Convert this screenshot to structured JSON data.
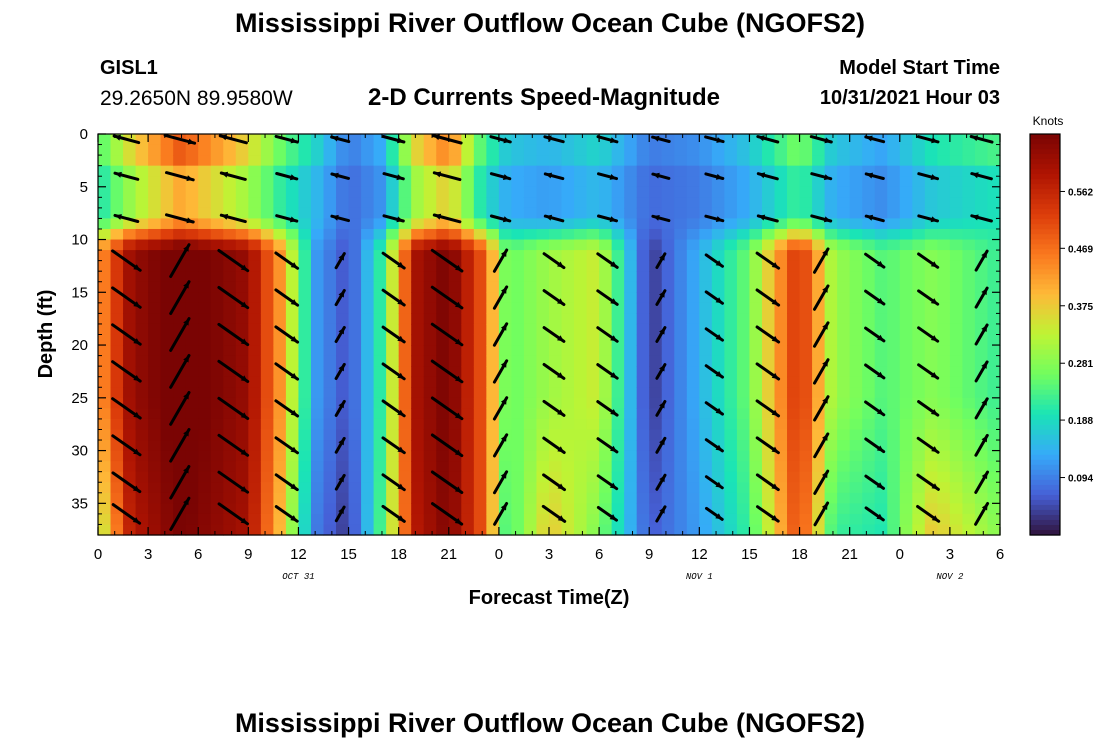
{
  "header": {
    "title": "Mississippi River Outflow Ocean Cube (NGOFS2)",
    "station_id": "GISL1",
    "coords": "29.2650N  89.9580W",
    "subtitle": "2-D Currents Speed-Magnitude",
    "model_start_label": "Model Start Time",
    "model_start_value": "10/31/2021 Hour 03"
  },
  "footer": {
    "title": "Mississippi River Outflow Ocean Cube (NGOFS2)"
  },
  "chart_data": {
    "type": "heatmap",
    "title": "2-D Currents Speed-Magnitude",
    "xlabel": "Forecast Time(Z)",
    "ylabel": "Depth (ft)",
    "x_ticks": [
      "0",
      "3",
      "6",
      "9",
      "12",
      "15",
      "18",
      "21",
      "0",
      "3",
      "6",
      "9",
      "12",
      "15",
      "18",
      "21",
      "0",
      "3",
      "6"
    ],
    "date_labels": [
      {
        "text": "OCT 31",
        "at_tick": 4
      },
      {
        "text": "NOV 1",
        "at_tick": 12
      },
      {
        "text": "NOV 2",
        "at_tick": 17
      }
    ],
    "y_ticks": [
      0,
      5,
      10,
      15,
      20,
      25,
      30,
      35
    ],
    "ylim": [
      0,
      38
    ],
    "colorbar": {
      "unit": "Knots",
      "range": [
        0,
        0.656
      ],
      "ticks": [
        "0.562",
        "0.469",
        "0.375",
        "0.281",
        "0.188",
        "0.094"
      ],
      "tick_values": [
        0.562,
        0.469,
        0.375,
        0.281,
        0.188,
        0.094
      ]
    },
    "forecast_hours": 54,
    "arrow_depths_ft": [
      0.5,
      4,
      8,
      12,
      15.5,
      19,
      22.5,
      26,
      29.5,
      33,
      36
    ],
    "speed_by_time": [
      {
        "t": 0,
        "surface": 0.26,
        "middle": 0.42,
        "deep": 0.3
      },
      {
        "t": 2,
        "surface": 0.4,
        "middle": 0.62,
        "deep": 0.58
      },
      {
        "t": 5,
        "surface": 0.55,
        "middle": 0.68,
        "deep": 0.66
      },
      {
        "t": 9,
        "surface": 0.4,
        "middle": 0.62,
        "deep": 0.6
      },
      {
        "t": 11,
        "surface": 0.28,
        "middle": 0.42,
        "deep": 0.38
      },
      {
        "t": 13,
        "surface": 0.2,
        "middle": 0.12,
        "deep": 0.09
      },
      {
        "t": 15,
        "surface": 0.1,
        "middle": 0.05,
        "deep": 0.03
      },
      {
        "t": 17,
        "surface": 0.15,
        "middle": 0.22,
        "deep": 0.24
      },
      {
        "t": 19,
        "surface": 0.4,
        "middle": 0.6,
        "deep": 0.58
      },
      {
        "t": 21,
        "surface": 0.5,
        "middle": 0.66,
        "deep": 0.65
      },
      {
        "t": 23,
        "surface": 0.26,
        "middle": 0.5,
        "deep": 0.5
      },
      {
        "t": 24.5,
        "surface": 0.18,
        "middle": 0.25,
        "deep": 0.22
      },
      {
        "t": 27,
        "surface": 0.16,
        "middle": 0.3,
        "deep": 0.38
      },
      {
        "t": 30,
        "surface": 0.2,
        "middle": 0.34,
        "deep": 0.27
      },
      {
        "t": 33,
        "surface": 0.1,
        "middle": 0.03,
        "deep": 0.06
      },
      {
        "t": 36,
        "surface": 0.12,
        "middle": 0.14,
        "deep": 0.12
      },
      {
        "t": 39,
        "surface": 0.18,
        "middle": 0.26,
        "deep": 0.22
      },
      {
        "t": 42,
        "surface": 0.3,
        "middle": 0.55,
        "deep": 0.52
      },
      {
        "t": 44,
        "surface": 0.18,
        "middle": 0.3,
        "deep": 0.22
      },
      {
        "t": 47,
        "surface": 0.14,
        "middle": 0.24,
        "deep": 0.2
      },
      {
        "t": 50,
        "surface": 0.22,
        "middle": 0.28,
        "deep": 0.38
      },
      {
        "t": 54,
        "surface": 0.26,
        "middle": 0.22,
        "deep": 0.28
      }
    ]
  }
}
